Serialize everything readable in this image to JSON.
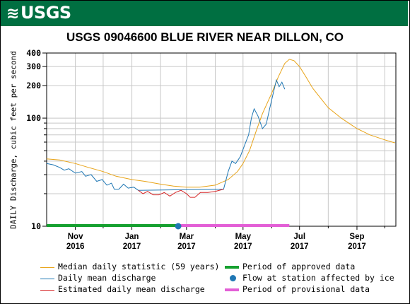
{
  "banner": {
    "logo_text": "USGS",
    "logo_icon": "usgs-wave-logo-icon"
  },
  "chart_data": {
    "type": "line",
    "title": "USGS 09046600 BLUE RIVER NEAR DILLON, CO",
    "ylabel": "DAILY Discharge, cubic feet per second",
    "xlabel": "",
    "y_scale": "log",
    "ylim": [
      10,
      400
    ],
    "xlim": [
      "2016-10-01",
      "2017-10-13"
    ],
    "grid": true,
    "y_ticks": [
      {
        "value": 10,
        "label": "10"
      },
      {
        "value": 100,
        "label": "100"
      },
      {
        "value": 200,
        "label": "200"
      },
      {
        "value": 300,
        "label": "300"
      },
      {
        "value": 400,
        "label": "400"
      }
    ],
    "y_minor_ticks": [
      20,
      30,
      40,
      50,
      60,
      70,
      80,
      90
    ],
    "x_ticks": [
      {
        "date": "2016-11-01",
        "label": "Nov",
        "year": "2016"
      },
      {
        "date": "2017-01-01",
        "label": "Jan",
        "year": "2017"
      },
      {
        "date": "2017-03-01",
        "label": "Mar",
        "year": "2017"
      },
      {
        "date": "2017-05-01",
        "label": "May",
        "year": "2017"
      },
      {
        "date": "2017-07-01",
        "label": "Jul",
        "year": "2017"
      },
      {
        "date": "2017-09-01",
        "label": "Sep",
        "year": "2017"
      }
    ],
    "x_gridlines": [
      "2016-12-01",
      "2017-02-01",
      "2017-04-01",
      "2017-06-01",
      "2017-08-01",
      "2017-10-01"
    ],
    "series": [
      {
        "name": "Median daily statistic (59 years)",
        "color": "#e8a317",
        "points": [
          [
            "2016-10-01",
            42
          ],
          [
            "2016-10-15",
            41
          ],
          [
            "2016-11-01",
            38
          ],
          [
            "2016-11-15",
            35
          ],
          [
            "2016-12-01",
            32
          ],
          [
            "2016-12-15",
            29
          ],
          [
            "2017-01-01",
            27
          ],
          [
            "2017-01-15",
            26
          ],
          [
            "2017-02-01",
            24.5
          ],
          [
            "2017-02-15",
            23.5
          ],
          [
            "2017-03-01",
            23
          ],
          [
            "2017-03-15",
            23
          ],
          [
            "2017-04-01",
            24
          ],
          [
            "2017-04-15",
            27
          ],
          [
            "2017-04-25",
            32
          ],
          [
            "2017-05-01",
            38
          ],
          [
            "2017-05-08",
            50
          ],
          [
            "2017-05-15",
            75
          ],
          [
            "2017-05-22",
            110
          ],
          [
            "2017-06-01",
            170
          ],
          [
            "2017-06-08",
            240
          ],
          [
            "2017-06-15",
            320
          ],
          [
            "2017-06-20",
            350
          ],
          [
            "2017-06-25",
            340
          ],
          [
            "2017-07-01",
            300
          ],
          [
            "2017-07-08",
            240
          ],
          [
            "2017-07-15",
            190
          ],
          [
            "2017-07-22",
            160
          ],
          [
            "2017-08-01",
            125
          ],
          [
            "2017-08-15",
            100
          ],
          [
            "2017-09-01",
            80
          ],
          [
            "2017-09-15",
            70
          ],
          [
            "2017-10-01",
            63
          ],
          [
            "2017-10-12",
            59
          ]
        ]
      },
      {
        "name": "Daily mean discharge",
        "color": "#1f77b4",
        "points": [
          [
            "2016-10-01",
            38
          ],
          [
            "2016-10-08",
            37
          ],
          [
            "2016-10-15",
            35
          ],
          [
            "2016-10-20",
            33
          ],
          [
            "2016-10-25",
            34
          ],
          [
            "2016-11-01",
            31
          ],
          [
            "2016-11-08",
            32
          ],
          [
            "2016-11-12",
            29
          ],
          [
            "2016-11-18",
            30
          ],
          [
            "2016-11-24",
            26
          ],
          [
            "2016-11-30",
            27
          ],
          [
            "2016-12-05",
            24
          ],
          [
            "2016-12-10",
            25
          ],
          [
            "2016-12-13",
            22
          ],
          [
            "2016-12-18",
            22
          ],
          [
            "2016-12-23",
            24.5
          ],
          [
            "2016-12-28",
            22.5
          ],
          [
            "2017-01-03",
            23
          ],
          [
            "2017-01-08",
            21.5
          ],
          [
            "2017-04-10",
            22
          ],
          [
            "2017-04-15",
            32
          ],
          [
            "2017-04-19",
            40
          ],
          [
            "2017-04-23",
            38
          ],
          [
            "2017-04-28",
            44
          ],
          [
            "2017-05-03",
            57
          ],
          [
            "2017-05-07",
            70
          ],
          [
            "2017-05-10",
            100
          ],
          [
            "2017-05-13",
            122
          ],
          [
            "2017-05-17",
            105
          ],
          [
            "2017-05-22",
            80
          ],
          [
            "2017-05-26",
            88
          ],
          [
            "2017-05-30",
            125
          ],
          [
            "2017-06-03",
            175
          ],
          [
            "2017-06-06",
            225
          ],
          [
            "2017-06-09",
            195
          ],
          [
            "2017-06-12",
            215
          ],
          [
            "2017-06-15",
            185
          ]
        ]
      },
      {
        "name": "Estimated daily mean discharge",
        "color": "#d62728",
        "points": [
          [
            "2017-01-08",
            21.5
          ],
          [
            "2017-01-13",
            20
          ],
          [
            "2017-01-18",
            21
          ],
          [
            "2017-01-24",
            19.5
          ],
          [
            "2017-01-30",
            19.5
          ],
          [
            "2017-02-05",
            20.5
          ],
          [
            "2017-02-11",
            19
          ],
          [
            "2017-02-17",
            20.5
          ],
          [
            "2017-02-23",
            21.5
          ],
          [
            "2017-03-01",
            20
          ],
          [
            "2017-03-05",
            18.5
          ],
          [
            "2017-03-10",
            18.5
          ],
          [
            "2017-03-16",
            20.5
          ],
          [
            "2017-03-24",
            20.5
          ],
          [
            "2017-04-01",
            21
          ],
          [
            "2017-04-10",
            22
          ]
        ]
      }
    ],
    "periods": [
      {
        "name": "Period of approved data",
        "color": "#16a030",
        "start": "2016-10-01",
        "end": "2017-02-20"
      },
      {
        "name": "Period of provisional data",
        "color": "#e35fd6",
        "start": "2017-02-20",
        "end": "2017-06-20"
      }
    ],
    "events": [
      {
        "name": "Flow at station affected by ice",
        "color": "#1f77b4",
        "date": "2017-02-20",
        "value": 10
      }
    ],
    "legend_placement": "bottom",
    "legend": [
      {
        "label": "Median daily statistic (59 years)",
        "kind": "line",
        "color": "#e8a317"
      },
      {
        "label": "Period of approved data",
        "kind": "thick-line",
        "color": "#16a030"
      },
      {
        "label": "Daily mean discharge",
        "kind": "line",
        "color": "#1f77b4"
      },
      {
        "label": "Flow at station affected by ice",
        "kind": "dot",
        "color": "#1f77b4"
      },
      {
        "label": "Estimated daily mean discharge",
        "kind": "line",
        "color": "#d62728"
      },
      {
        "label": "Period of provisional data",
        "kind": "thick-line",
        "color": "#e35fd6"
      }
    ]
  }
}
